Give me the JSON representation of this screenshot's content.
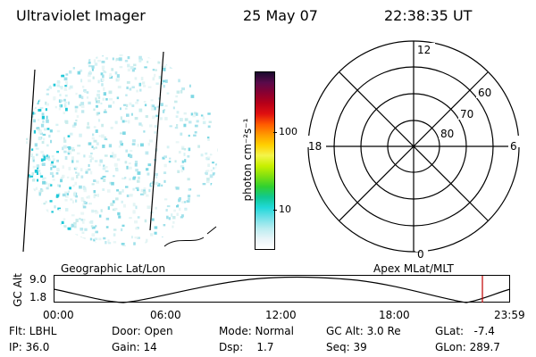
{
  "header": {
    "instrument": "Ultraviolet Imager",
    "date": "25 May 07",
    "time": "22:38:35 UT"
  },
  "colorbar": {
    "unit_label": "photon cm⁻²s⁻¹",
    "tick_100": "100",
    "tick_10": "10",
    "colors": [
      "#1a0a2e",
      "#5a0a4a",
      "#8a0030",
      "#b80018",
      "#e01010",
      "#ff5a00",
      "#ff9a00",
      "#ffd000",
      "#f4f44a",
      "#c8f000",
      "#80e010",
      "#30d030",
      "#10c890",
      "#20d8d8",
      "#70e0e8",
      "#b8ecf0",
      "#e8f4f8",
      "#ffffff"
    ]
  },
  "polar": {
    "label_top": "12",
    "label_bottom": "0",
    "label_left": "18",
    "label_right": "6",
    "lat_60": "60",
    "lat_70": "70",
    "lat_80": "80"
  },
  "orbit": {
    "left_label": "Geographic Lat/Lon",
    "right_label": "Apex MLat/MLT",
    "axis_title": "GC Alt",
    "y_top": "9.0",
    "y_bottom": "1.8",
    "x_ticks": [
      "00:00",
      "06:00",
      "12:00",
      "18:00",
      "23:59"
    ],
    "current_marker_color": "#c00000"
  },
  "status": {
    "filter": "Flt: LBHL",
    "ip": "IP: 36.0",
    "door": "Door: Open",
    "gain": "Gain: 14",
    "mode": "Mode: Normal",
    "dsp": "Dsp:    1.7",
    "gc_alt": "GC Alt: 3.0 Re",
    "seq": "Seq: 39",
    "glat": "GLat:   -7.4",
    "glon": "GLon: 289.7"
  }
}
